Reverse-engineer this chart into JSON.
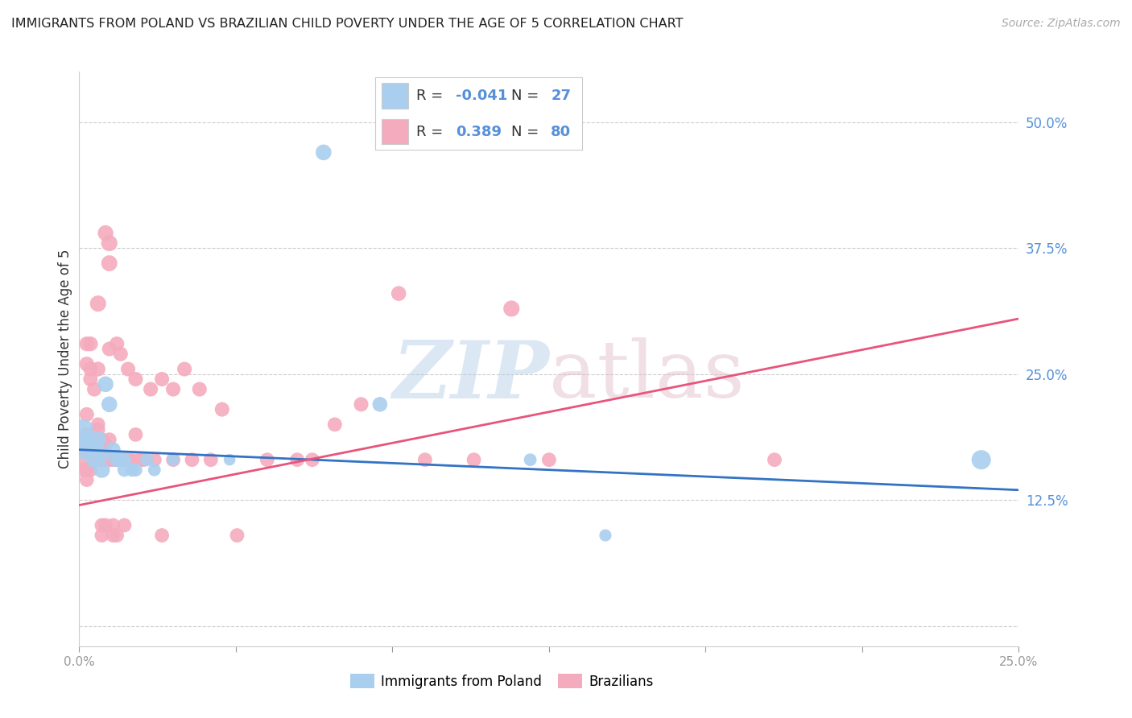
{
  "title": "IMMIGRANTS FROM POLAND VS BRAZILIAN CHILD POVERTY UNDER THE AGE OF 5 CORRELATION CHART",
  "source": "Source: ZipAtlas.com",
  "ylabel": "Child Poverty Under the Age of 5",
  "xlim": [
    0.0,
    0.25
  ],
  "ylim": [
    -0.02,
    0.55
  ],
  "yticks": [
    0.0,
    0.125,
    0.25,
    0.375,
    0.5
  ],
  "ytick_labels": [
    "",
    "12.5%",
    "25.0%",
    "37.5%",
    "50.0%"
  ],
  "xticks": [
    0.0,
    0.04167,
    0.08333,
    0.125,
    0.16667,
    0.20833,
    0.25
  ],
  "xtick_labels": [
    "0.0%",
    "",
    "",
    "",
    "",
    "",
    "25.0%"
  ],
  "blue_R": -0.041,
  "blue_N": 27,
  "pink_R": 0.389,
  "pink_N": 80,
  "blue_color": "#aacfee",
  "pink_color": "#f5abbe",
  "blue_line_color": "#3373c4",
  "pink_line_color": "#e8547a",
  "background_color": "#ffffff",
  "grid_color": "#cccccc",
  "blue_trend": [
    0.175,
    0.135
  ],
  "pink_trend": [
    0.12,
    0.305
  ],
  "blue_points": [
    [
      0.001,
      0.195
    ],
    [
      0.001,
      0.175
    ],
    [
      0.002,
      0.185
    ],
    [
      0.003,
      0.18
    ],
    [
      0.004,
      0.175
    ],
    [
      0.004,
      0.165
    ],
    [
      0.005,
      0.185
    ],
    [
      0.006,
      0.17
    ],
    [
      0.006,
      0.155
    ],
    [
      0.007,
      0.24
    ],
    [
      0.008,
      0.22
    ],
    [
      0.009,
      0.175
    ],
    [
      0.01,
      0.165
    ],
    [
      0.011,
      0.165
    ],
    [
      0.012,
      0.165
    ],
    [
      0.012,
      0.155
    ],
    [
      0.014,
      0.155
    ],
    [
      0.015,
      0.155
    ],
    [
      0.018,
      0.165
    ],
    [
      0.02,
      0.155
    ],
    [
      0.025,
      0.165
    ],
    [
      0.04,
      0.165
    ],
    [
      0.065,
      0.47
    ],
    [
      0.08,
      0.22
    ],
    [
      0.12,
      0.165
    ],
    [
      0.14,
      0.09
    ],
    [
      0.24,
      0.165
    ]
  ],
  "pink_points": [
    [
      0.001,
      0.175
    ],
    [
      0.001,
      0.165
    ],
    [
      0.001,
      0.175
    ],
    [
      0.001,
      0.155
    ],
    [
      0.002,
      0.19
    ],
    [
      0.002,
      0.21
    ],
    [
      0.002,
      0.155
    ],
    [
      0.002,
      0.145
    ],
    [
      0.002,
      0.26
    ],
    [
      0.002,
      0.28
    ],
    [
      0.003,
      0.155
    ],
    [
      0.003,
      0.175
    ],
    [
      0.003,
      0.28
    ],
    [
      0.003,
      0.255
    ],
    [
      0.003,
      0.245
    ],
    [
      0.003,
      0.185
    ],
    [
      0.004,
      0.165
    ],
    [
      0.004,
      0.185
    ],
    [
      0.004,
      0.235
    ],
    [
      0.004,
      0.175
    ],
    [
      0.004,
      0.165
    ],
    [
      0.005,
      0.165
    ],
    [
      0.005,
      0.2
    ],
    [
      0.005,
      0.255
    ],
    [
      0.005,
      0.195
    ],
    [
      0.005,
      0.32
    ],
    [
      0.006,
      0.165
    ],
    [
      0.006,
      0.185
    ],
    [
      0.006,
      0.175
    ],
    [
      0.006,
      0.09
    ],
    [
      0.006,
      0.1
    ],
    [
      0.007,
      0.18
    ],
    [
      0.007,
      0.165
    ],
    [
      0.007,
      0.1
    ],
    [
      0.007,
      0.39
    ],
    [
      0.008,
      0.165
    ],
    [
      0.008,
      0.185
    ],
    [
      0.008,
      0.275
    ],
    [
      0.008,
      0.38
    ],
    [
      0.008,
      0.36
    ],
    [
      0.009,
      0.165
    ],
    [
      0.009,
      0.09
    ],
    [
      0.009,
      0.1
    ],
    [
      0.01,
      0.165
    ],
    [
      0.01,
      0.28
    ],
    [
      0.01,
      0.09
    ],
    [
      0.011,
      0.27
    ],
    [
      0.011,
      0.165
    ],
    [
      0.012,
      0.165
    ],
    [
      0.012,
      0.1
    ],
    [
      0.013,
      0.165
    ],
    [
      0.013,
      0.255
    ],
    [
      0.014,
      0.165
    ],
    [
      0.015,
      0.19
    ],
    [
      0.015,
      0.245
    ],
    [
      0.016,
      0.165
    ],
    [
      0.017,
      0.165
    ],
    [
      0.019,
      0.235
    ],
    [
      0.02,
      0.165
    ],
    [
      0.022,
      0.09
    ],
    [
      0.022,
      0.245
    ],
    [
      0.025,
      0.235
    ],
    [
      0.025,
      0.165
    ],
    [
      0.028,
      0.255
    ],
    [
      0.03,
      0.165
    ],
    [
      0.032,
      0.235
    ],
    [
      0.035,
      0.165
    ],
    [
      0.038,
      0.215
    ],
    [
      0.042,
      0.09
    ],
    [
      0.05,
      0.165
    ],
    [
      0.058,
      0.165
    ],
    [
      0.062,
      0.165
    ],
    [
      0.068,
      0.2
    ],
    [
      0.075,
      0.22
    ],
    [
      0.085,
      0.33
    ],
    [
      0.092,
      0.165
    ],
    [
      0.105,
      0.165
    ],
    [
      0.115,
      0.315
    ],
    [
      0.125,
      0.165
    ],
    [
      0.185,
      0.165
    ]
  ],
  "blue_sizes": [
    350,
    280,
    260,
    250,
    230,
    220,
    230,
    220,
    210,
    200,
    200,
    180,
    170,
    160,
    160,
    155,
    150,
    145,
    140,
    130,
    120,
    110,
    200,
    180,
    130,
    120,
    300
  ],
  "pink_sizes": [
    180,
    170,
    165,
    160,
    175,
    170,
    165,
    160,
    175,
    175,
    165,
    165,
    175,
    170,
    170,
    165,
    165,
    165,
    170,
    165,
    165,
    165,
    165,
    175,
    165,
    210,
    165,
    165,
    165,
    165,
    165,
    165,
    165,
    165,
    195,
    165,
    165,
    170,
    210,
    205,
    165,
    165,
    165,
    165,
    175,
    165,
    170,
    165,
    165,
    165,
    165,
    170,
    165,
    165,
    170,
    165,
    165,
    170,
    165,
    165,
    170,
    170,
    165,
    170,
    165,
    170,
    165,
    170,
    165,
    165,
    165,
    165,
    165,
    170,
    180,
    165,
    165,
    210,
    165,
    165
  ]
}
